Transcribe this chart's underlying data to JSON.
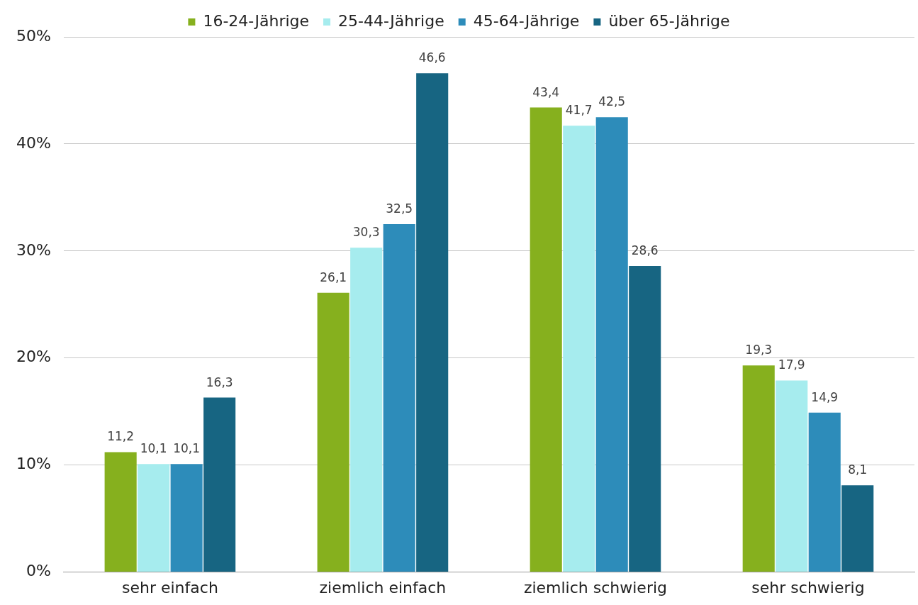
{
  "chart_data": {
    "type": "bar",
    "categories": [
      "sehr einfach",
      "ziemlich einfach",
      "ziemlich schwierig",
      "sehr schwierig"
    ],
    "series": [
      {
        "name": "16-24-Jährige",
        "color": "#86b01e",
        "values": [
          11.2,
          26.1,
          43.4,
          19.3
        ],
        "value_labels": [
          "11,2",
          "26,1",
          "43,4",
          "19,3"
        ]
      },
      {
        "name": "25-44-Jährige",
        "color": "#a6ecee",
        "values": [
          10.1,
          30.3,
          41.7,
          17.9
        ],
        "value_labels": [
          "10,1",
          "30,3",
          "41,7",
          "17,9"
        ]
      },
      {
        "name": "45-64-Jährige",
        "color": "#2d8cba",
        "values": [
          10.1,
          32.5,
          42.5,
          14.9
        ],
        "value_labels": [
          "10,1",
          "32,5",
          "42,5",
          "14,9"
        ]
      },
      {
        "name": "über 65-Jährige",
        "color": "#176582",
        "values": [
          16.3,
          46.6,
          28.6,
          8.1
        ],
        "value_labels": [
          "16,3",
          "46,6",
          "28,6",
          "8,1"
        ]
      }
    ],
    "ylim": [
      0,
      50
    ],
    "yticks": [
      {
        "value": 0,
        "label": "0%"
      },
      {
        "value": 10,
        "label": "10%"
      },
      {
        "value": 20,
        "label": "20%"
      },
      {
        "value": 30,
        "label": "30%"
      },
      {
        "value": 40,
        "label": "40%"
      },
      {
        "value": 50,
        "label": "50%"
      }
    ],
    "grid": "y",
    "legend": "top"
  }
}
